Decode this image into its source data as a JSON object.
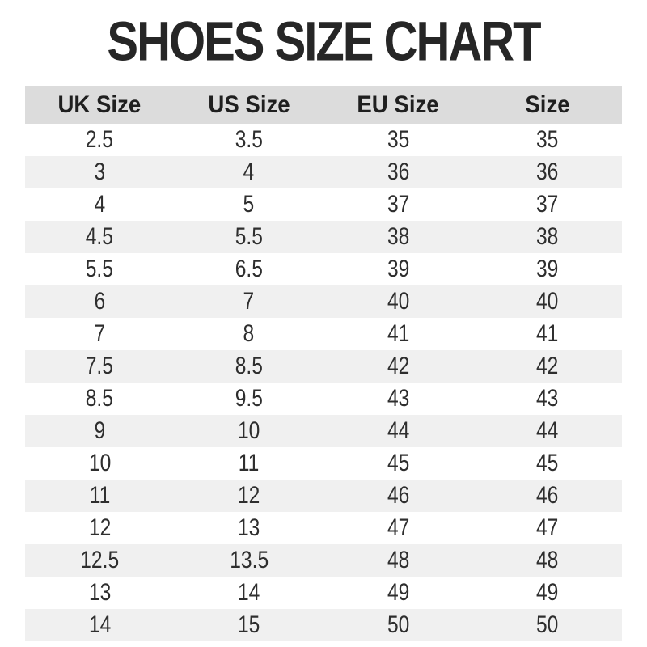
{
  "page": {
    "title": "SHOES SIZE CHART"
  },
  "colors": {
    "header_bg": "#dcdcdc",
    "row_alt_bg": "#f0f0f0",
    "row_bg": "#ffffff",
    "title_color": "#262626",
    "text_color": "#2e2e2e"
  },
  "table": {
    "headers": [
      "UK Size",
      "US Size",
      "EU Size",
      "Size"
    ],
    "rows": [
      [
        "2.5",
        "3.5",
        "35",
        "35"
      ],
      [
        "3",
        "4",
        "36",
        "36"
      ],
      [
        "4",
        "5",
        "37",
        "37"
      ],
      [
        "4.5",
        "5.5",
        "38",
        "38"
      ],
      [
        "5.5",
        "6.5",
        "39",
        "39"
      ],
      [
        "6",
        "7",
        "40",
        "40"
      ],
      [
        "7",
        "8",
        "41",
        "41"
      ],
      [
        "7.5",
        "8.5",
        "42",
        "42"
      ],
      [
        "8.5",
        "9.5",
        "43",
        "43"
      ],
      [
        "9",
        "10",
        "44",
        "44"
      ],
      [
        "10",
        "11",
        "45",
        "45"
      ],
      [
        "11",
        "12",
        "46",
        "46"
      ],
      [
        "12",
        "13",
        "47",
        "47"
      ],
      [
        "12.5",
        "13.5",
        "48",
        "48"
      ],
      [
        "13",
        "14",
        "49",
        "49"
      ],
      [
        "14",
        "15",
        "50",
        "50"
      ]
    ]
  },
  "chart_data": {
    "type": "table",
    "title": "SHOES SIZE CHART",
    "columns": [
      "UK Size",
      "US Size",
      "EU Size",
      "Size"
    ],
    "rows": [
      [
        "2.5",
        "3.5",
        "35",
        "35"
      ],
      [
        "3",
        "4",
        "36",
        "36"
      ],
      [
        "4",
        "5",
        "37",
        "37"
      ],
      [
        "4.5",
        "5.5",
        "38",
        "38"
      ],
      [
        "5.5",
        "6.5",
        "39",
        "39"
      ],
      [
        "6",
        "7",
        "40",
        "40"
      ],
      [
        "7",
        "8",
        "41",
        "41"
      ],
      [
        "7.5",
        "8.5",
        "42",
        "42"
      ],
      [
        "8.5",
        "9.5",
        "43",
        "43"
      ],
      [
        "9",
        "10",
        "44",
        "44"
      ],
      [
        "10",
        "11",
        "45",
        "45"
      ],
      [
        "11",
        "12",
        "46",
        "46"
      ],
      [
        "12",
        "13",
        "47",
        "47"
      ],
      [
        "12.5",
        "13.5",
        "48",
        "48"
      ],
      [
        "13",
        "14",
        "49",
        "49"
      ],
      [
        "14",
        "15",
        "50",
        "50"
      ]
    ],
    "layout": {
      "zebra_striping": true,
      "header_background": "#dcdcdc",
      "alt_row_background": "#f0f0f0",
      "columns_equal_width": true,
      "alignment": "center"
    }
  }
}
